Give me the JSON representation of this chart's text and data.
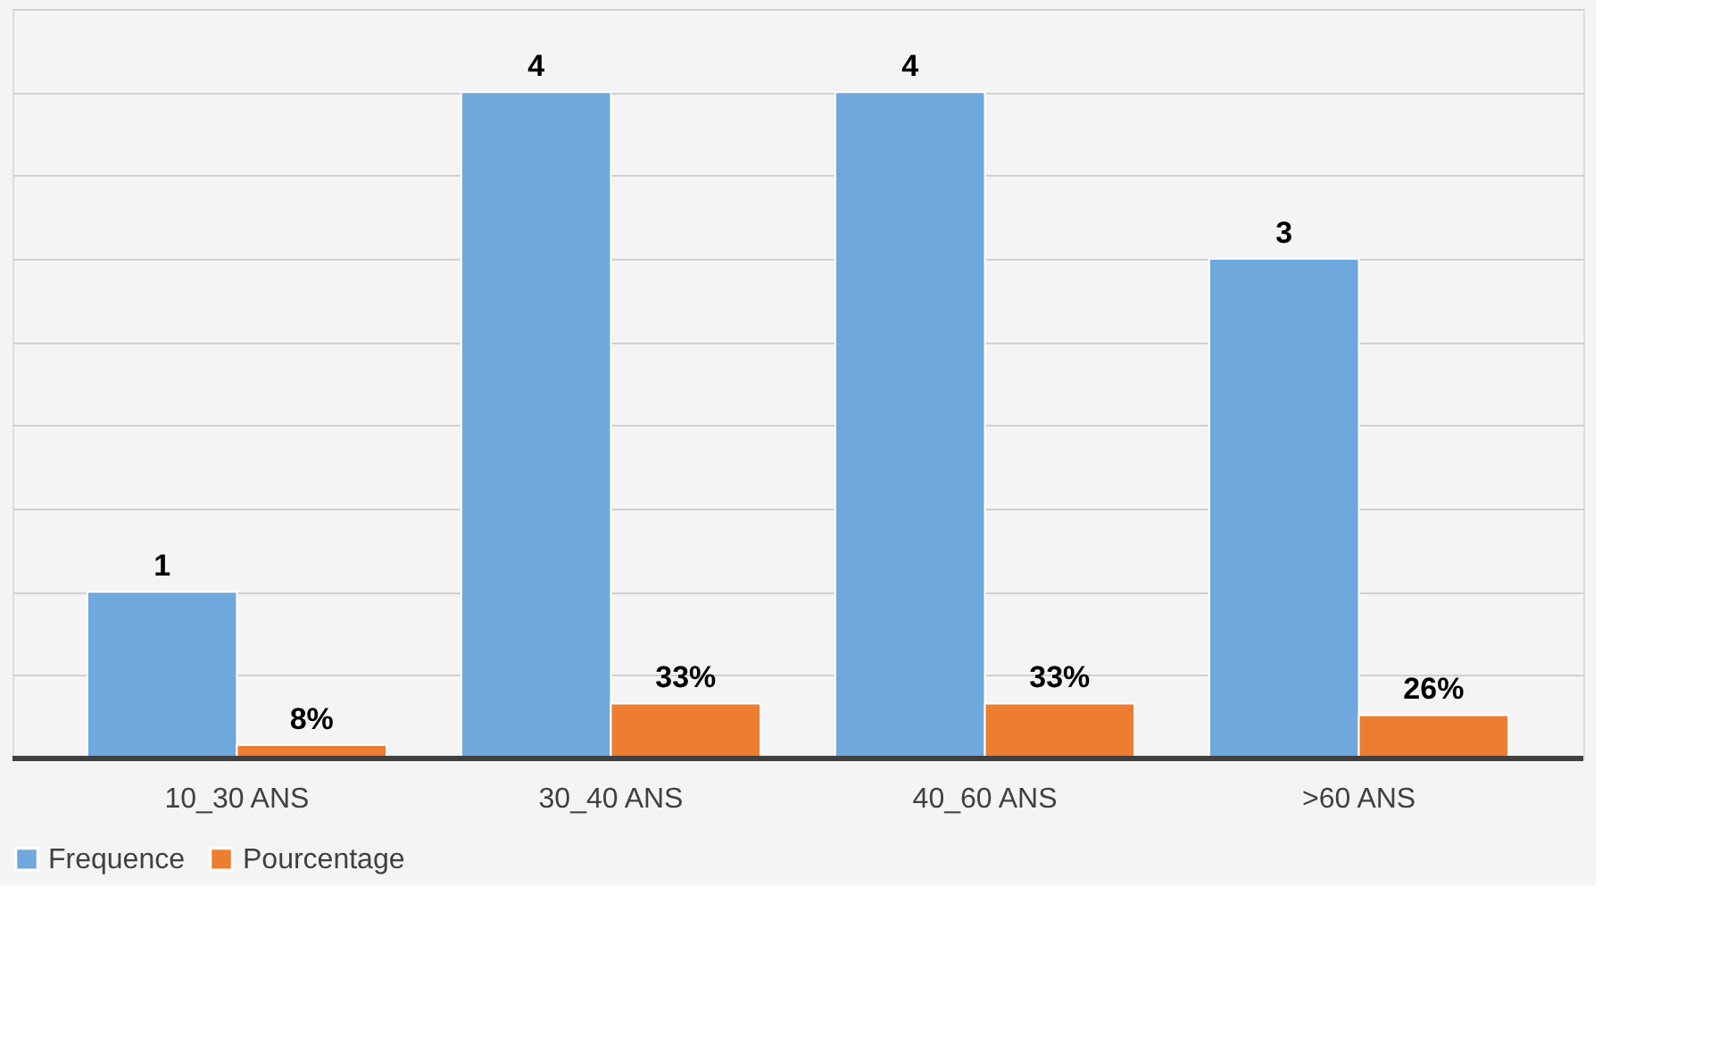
{
  "chart_data": {
    "type": "bar",
    "categories": [
      "10_30 ANS",
      "30_40 ANS",
      "40_60 ANS",
      ">60 ANS"
    ],
    "series": [
      {
        "name": "Frequence",
        "color": "#6fa8dc",
        "values": [
          1,
          4,
          4,
          3
        ],
        "value_labels": [
          "1",
          "4",
          "4",
          "3"
        ]
      },
      {
        "name": "Pourcentage",
        "color": "#ed7d31",
        "values": [
          0.08,
          0.33,
          0.33,
          0.26
        ],
        "value_labels": [
          "8%",
          "33%",
          "33%",
          "26%"
        ]
      }
    ],
    "ylim": [
      0,
      4.5
    ],
    "yticks": [
      {
        "value": 0,
        "label": null
      },
      {
        "value": 0.5,
        "label": null
      },
      {
        "value": 1,
        "label": null
      },
      {
        "value": 1.5,
        "label": null
      },
      {
        "value": 2,
        "label": null
      },
      {
        "value": 2.5,
        "label": null
      },
      {
        "value": 3,
        "label": null
      },
      {
        "value": 3.5,
        "label": null
      },
      {
        "value": 4,
        "label": null
      },
      {
        "value": 4.5,
        "label": null
      }
    ],
    "grid": "y",
    "tick_labels": "x",
    "legend": "bottom"
  }
}
